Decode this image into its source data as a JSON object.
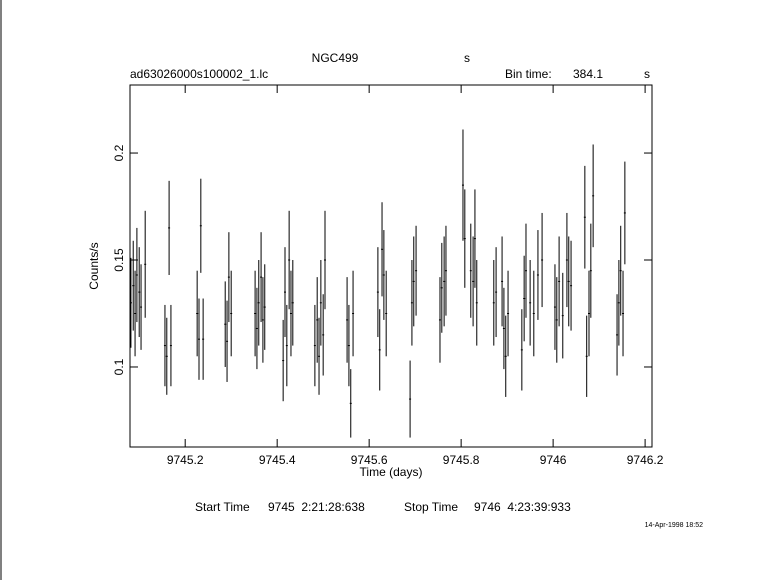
{
  "chart_data": {
    "type": "errorbar",
    "title": "NGC499",
    "title_unit": "s",
    "file_name": "ad63026000s100002_1.lc",
    "bin_time_label": "Bin time:",
    "bin_time": 384.1,
    "bin_time_unit": "s",
    "xlabel": "Time (days)",
    "ylabel": "Counts/s",
    "start_label": "Start Time",
    "start_value": "9745  2:21:28:638",
    "stop_label": "Stop Time",
    "stop_value": "9746  4:23:39:933",
    "timestamp": "14-Apr-1998 18:52",
    "xlim": [
      9745.08,
      9746.215
    ],
    "xticks": [
      9745.2,
      9745.4,
      9745.6,
      9745.8,
      9746,
      9746.2
    ],
    "ylim": [
      0.0626,
      0.2318
    ],
    "yticks": [
      0.1,
      0.15,
      0.2
    ],
    "color": "#000000",
    "x": [
      9745.082,
      9745.087,
      9745.091,
      9745.095,
      9745.1,
      9745.104,
      9745.113,
      9745.156,
      9745.16,
      9745.165,
      9745.169,
      9745.226,
      9745.23,
      9745.234,
      9745.239,
      9745.287,
      9745.291,
      9745.295,
      9745.3,
      9745.352,
      9745.356,
      9745.36,
      9745.365,
      9745.369,
      9745.373,
      9745.413,
      9745.417,
      9745.421,
      9745.426,
      9745.43,
      9745.434,
      9745.482,
      9745.487,
      9745.491,
      9745.495,
      9745.5,
      9745.504,
      9745.552,
      9745.556,
      9745.56,
      9745.565,
      9745.619,
      9745.623,
      9745.628,
      9745.632,
      9745.637,
      9745.689,
      9745.693,
      9745.697,
      9745.702,
      9745.754,
      9745.758,
      9745.763,
      9745.767,
      9745.804,
      9745.808,
      9745.821,
      9745.826,
      9745.83,
      9745.834,
      9745.871,
      9745.876,
      9745.889,
      9745.893,
      9745.897,
      9745.902,
      9745.932,
      9745.937,
      9745.941,
      9745.95,
      9745.958,
      9745.967,
      9745.976,
      9746.004,
      9746.008,
      9746.013,
      9746.021,
      9746.03,
      9746.034,
      9746.039,
      9746.069,
      9746.073,
      9746.078,
      9746.082,
      9746.087,
      9746.139,
      9746.143,
      9746.147,
      9746.152,
      9746.156
    ],
    "values": [
      0.13,
      0.138,
      0.125,
      0.143,
      0.135,
      0.128,
      0.148,
      0.11,
      0.105,
      0.165,
      0.11,
      0.125,
      0.113,
      0.166,
      0.113,
      0.12,
      0.112,
      0.142,
      0.125,
      0.125,
      0.118,
      0.13,
      0.142,
      0.122,
      0.128,
      0.103,
      0.135,
      0.11,
      0.15,
      0.125,
      0.13,
      0.11,
      0.122,
      0.105,
      0.13,
      0.115,
      0.15,
      0.122,
      0.11,
      0.083,
      0.125,
      0.135,
      0.108,
      0.155,
      0.143,
      0.125,
      0.085,
      0.13,
      0.14,
      0.145,
      0.122,
      0.137,
      0.14,
      0.145,
      0.185,
      0.16,
      0.145,
      0.14,
      0.16,
      0.13,
      0.13,
      0.135,
      0.14,
      0.118,
      0.105,
      0.125,
      0.108,
      0.132,
      0.145,
      0.13,
      0.125,
      0.143,
      0.15,
      0.128,
      0.122,
      0.14,
      0.124,
      0.15,
      0.14,
      0.138,
      0.17,
      0.105,
      0.125,
      0.145,
      0.18,
      0.115,
      0.13,
      0.145,
      0.125,
      0.172
    ],
    "errors": [
      0.021,
      0.021,
      0.02,
      0.022,
      0.021,
      0.02,
      0.025,
      0.019,
      0.018,
      0.022,
      0.019,
      0.02,
      0.019,
      0.022,
      0.019,
      0.02,
      0.019,
      0.021,
      0.02,
      0.02,
      0.019,
      0.02,
      0.021,
      0.02,
      0.02,
      0.019,
      0.021,
      0.019,
      0.023,
      0.02,
      0.02,
      0.019,
      0.02,
      0.018,
      0.02,
      0.019,
      0.023,
      0.02,
      0.019,
      0.016,
      0.02,
      0.021,
      0.019,
      0.022,
      0.021,
      0.02,
      0.018,
      0.02,
      0.021,
      0.021,
      0.02,
      0.021,
      0.021,
      0.021,
      0.026,
      0.023,
      0.022,
      0.021,
      0.023,
      0.02,
      0.02,
      0.021,
      0.021,
      0.019,
      0.019,
      0.02,
      0.019,
      0.02,
      0.022,
      0.02,
      0.02,
      0.021,
      0.022,
      0.02,
      0.02,
      0.021,
      0.02,
      0.022,
      0.021,
      0.021,
      0.024,
      0.019,
      0.02,
      0.022,
      0.024,
      0.019,
      0.02,
      0.021,
      0.02,
      0.024
    ]
  }
}
